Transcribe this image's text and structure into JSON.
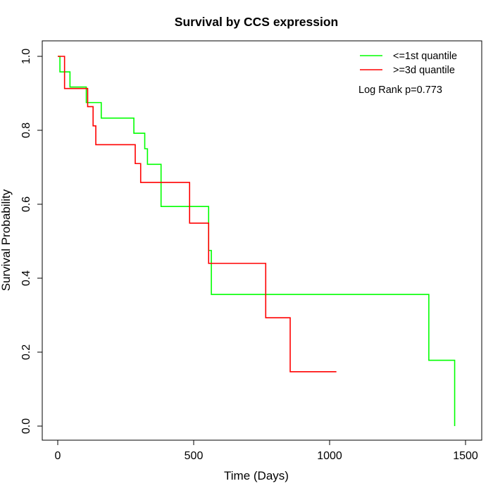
{
  "chart_data": {
    "type": "line",
    "title": "Survival by CCS expression",
    "xlabel": "Time (Days)",
    "ylabel": "Survival Probability",
    "xlim": [
      0,
      1500
    ],
    "ylim": [
      0,
      1
    ],
    "xticks": [
      {
        "value": 0,
        "label": "0"
      },
      {
        "value": 500,
        "label": "500"
      },
      {
        "value": 1000,
        "label": "1000"
      },
      {
        "value": 1500,
        "label": "1500"
      }
    ],
    "yticks": [
      {
        "value": 0.0,
        "label": "0.0"
      },
      {
        "value": 0.2,
        "label": "0.2"
      },
      {
        "value": 0.4,
        "label": "0.4"
      },
      {
        "value": 0.6,
        "label": "0.6"
      },
      {
        "value": 0.8,
        "label": "0.8"
      },
      {
        "value": 1.0,
        "label": "1.0"
      }
    ],
    "grid": false,
    "legend_position": "top-right",
    "annotation": "Log Rank p=0.773",
    "series": [
      {
        "name": "<=1st quantile",
        "color": "#00ff00",
        "step_type": "post",
        "points": [
          [
            0,
            1.0
          ],
          [
            8,
            0.958
          ],
          [
            45,
            0.917
          ],
          [
            105,
            0.875
          ],
          [
            160,
            0.833
          ],
          [
            280,
            0.792
          ],
          [
            320,
            0.75
          ],
          [
            330,
            0.708
          ],
          [
            380,
            0.594
          ],
          [
            555,
            0.475
          ],
          [
            565,
            0.356
          ],
          [
            1365,
            0.178
          ],
          [
            1460,
            0.0
          ]
        ]
      },
      {
        "name": ">=3d quantile",
        "color": "#ff0000",
        "step_type": "post",
        "points": [
          [
            0,
            1.0
          ],
          [
            25,
            0.913
          ],
          [
            110,
            0.864
          ],
          [
            130,
            0.812
          ],
          [
            140,
            0.761
          ],
          [
            285,
            0.71
          ],
          [
            305,
            0.659
          ],
          [
            485,
            0.549
          ],
          [
            555,
            0.44
          ],
          [
            765,
            0.293
          ],
          [
            855,
            0.147
          ],
          [
            1025,
            0.147
          ]
        ]
      }
    ]
  }
}
